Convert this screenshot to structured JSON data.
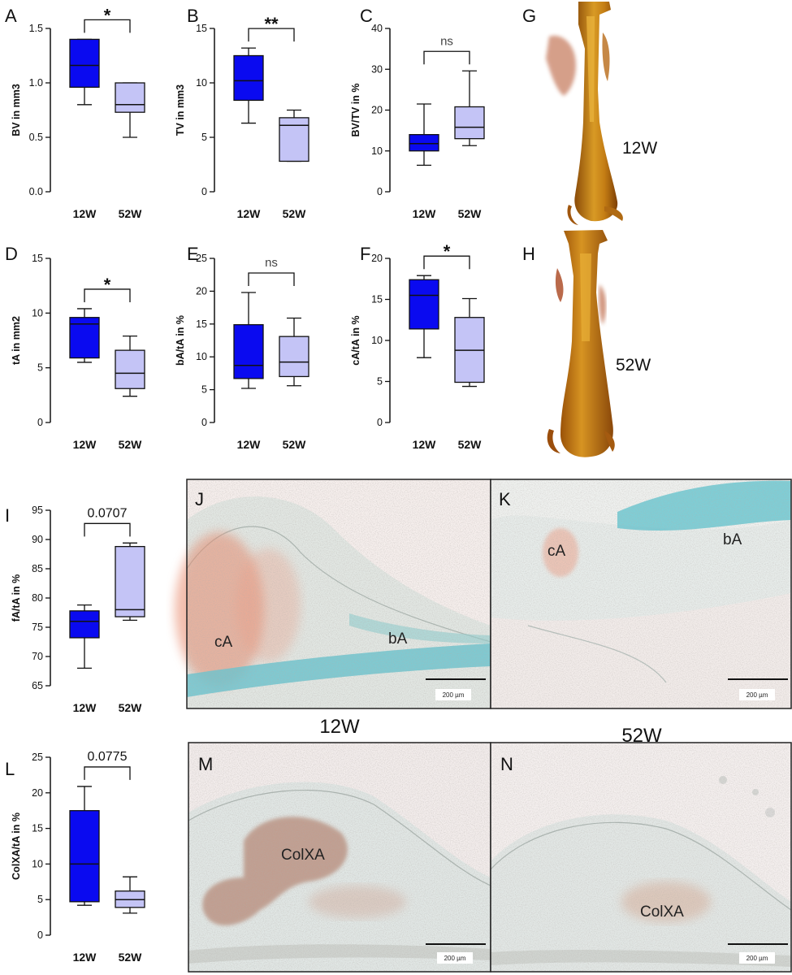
{
  "categories": [
    "12W",
    "52W"
  ],
  "colors": {
    "group_12w": "#0a0af0",
    "group_52w": "#c4c4f6"
  },
  "chart_data": [
    {
      "panel": "A",
      "type": "box",
      "ylabel": "BV in mm3",
      "ylim": [
        0,
        1.5
      ],
      "yticks": [
        "0.0",
        "0.5",
        "1.0",
        "1.5"
      ],
      "significance": "*",
      "boxes": [
        {
          "min": 0.8,
          "q1": 0.96,
          "median": 1.16,
          "q3": 1.4,
          "max": 1.4
        },
        {
          "min": 0.5,
          "q1": 0.73,
          "median": 0.8,
          "q3": 1.0,
          "max": 1.0
        }
      ]
    },
    {
      "panel": "B",
      "type": "box",
      "ylabel": "TV in mm3",
      "ylim": [
        0,
        15
      ],
      "yticks": [
        "0",
        "5",
        "10",
        "15"
      ],
      "significance": "**",
      "boxes": [
        {
          "min": 6.3,
          "q1": 8.4,
          "median": 10.2,
          "q3": 12.5,
          "max": 13.2
        },
        {
          "min": 2.8,
          "q1": 2.8,
          "median": 6.1,
          "q3": 6.8,
          "max": 7.5
        }
      ]
    },
    {
      "panel": "C",
      "type": "box",
      "ylabel": "BV/TV in %",
      "ylim": [
        0,
        40
      ],
      "yticks": [
        "0",
        "10",
        "20",
        "30",
        "40"
      ],
      "significance": "ns",
      "boxes": [
        {
          "min": 6.5,
          "q1": 10.0,
          "median": 11.8,
          "q3": 14.0,
          "max": 21.5
        },
        {
          "min": 11.3,
          "q1": 13.0,
          "median": 15.8,
          "q3": 20.8,
          "max": 29.6
        }
      ]
    },
    {
      "panel": "D",
      "type": "box",
      "ylabel": "tA in mm2",
      "ylim": [
        0,
        15
      ],
      "yticks": [
        "0",
        "5",
        "10",
        "15"
      ],
      "significance": "*",
      "boxes": [
        {
          "min": 5.5,
          "q1": 5.9,
          "median": 9.0,
          "q3": 9.6,
          "max": 10.4
        },
        {
          "min": 2.4,
          "q1": 3.1,
          "median": 4.5,
          "q3": 6.6,
          "max": 7.9
        }
      ]
    },
    {
      "panel": "E",
      "type": "box",
      "ylabel": "bA/tA in %",
      "ylim": [
        0,
        25
      ],
      "yticks": [
        "0",
        "5",
        "10",
        "15",
        "20",
        "25"
      ],
      "significance": "ns",
      "boxes": [
        {
          "min": 5.2,
          "q1": 6.7,
          "median": 8.7,
          "q3": 14.9,
          "max": 19.8
        },
        {
          "min": 5.6,
          "q1": 7.0,
          "median": 9.2,
          "q3": 13.1,
          "max": 15.9
        }
      ]
    },
    {
      "panel": "F",
      "type": "box",
      "ylabel": "cA/tA in %",
      "ylim": [
        0,
        20
      ],
      "yticks": [
        "0",
        "5",
        "10",
        "15",
        "20"
      ],
      "significance": "*",
      "boxes": [
        {
          "min": 7.9,
          "q1": 11.4,
          "median": 15.5,
          "q3": 17.4,
          "max": 17.9
        },
        {
          "min": 4.4,
          "q1": 4.9,
          "median": 8.8,
          "q3": 12.8,
          "max": 15.1
        }
      ]
    },
    {
      "panel": "I",
      "type": "box",
      "ylabel": "fA/tA in %",
      "ylim": [
        65,
        95
      ],
      "yticks": [
        "65",
        "70",
        "75",
        "80",
        "85",
        "90",
        "95"
      ],
      "significance": "0.0707",
      "boxes": [
        {
          "min": 68.0,
          "q1": 73.2,
          "median": 76.0,
          "q3": 77.8,
          "max": 78.8
        },
        {
          "min": 76.2,
          "q1": 76.8,
          "median": 78.0,
          "q3": 88.8,
          "max": 89.4
        }
      ]
    },
    {
      "panel": "L",
      "type": "box",
      "ylabel": "ColXA/tA in %",
      "ylim": [
        0,
        25
      ],
      "yticks": [
        "0",
        "5",
        "10",
        "15",
        "20",
        "25"
      ],
      "significance": "0.0775",
      "boxes": [
        {
          "min": 4.2,
          "q1": 4.7,
          "median": 10.0,
          "q3": 17.5,
          "max": 20.9
        },
        {
          "min": 3.1,
          "q1": 3.9,
          "median": 5.0,
          "q3": 6.2,
          "max": 8.2
        }
      ]
    }
  ],
  "renders": [
    {
      "panel": "G",
      "label": "12W"
    },
    {
      "panel": "H",
      "label": "52W"
    }
  ],
  "histology": [
    {
      "panel": "J",
      "annotations": [
        "cA",
        "bA"
      ],
      "scale": "200 µm"
    },
    {
      "panel": "K",
      "annotations": [
        "cA",
        "bA"
      ],
      "scale": "200 µm"
    },
    {
      "panel": "M",
      "annotations": [
        "ColXA"
      ],
      "scale": "200 µm"
    },
    {
      "panel": "N",
      "annotations": [
        "ColXA"
      ],
      "scale": "200 µm"
    }
  ],
  "histology_captions": [
    "12W",
    "52W"
  ]
}
